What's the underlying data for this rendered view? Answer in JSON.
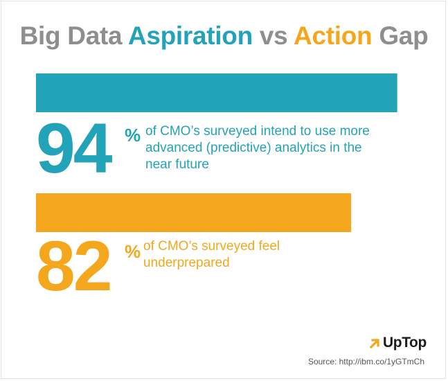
{
  "title": {
    "part1": "Big Data ",
    "part2": "Aspiration",
    "part3": " vs ",
    "part4": "Action",
    "part5": " Gap"
  },
  "colors": {
    "teal": "#22a3b8",
    "orange": "#f4a71d",
    "gray": "#8e8e8e"
  },
  "chart_data": {
    "type": "bar",
    "title": "Big Data Aspiration vs Action Gap",
    "xlabel": "",
    "ylabel": "",
    "xlim": [
      0,
      100
    ],
    "grid": false,
    "series": [
      {
        "value": 94,
        "value_label": "94",
        "unit": "%",
        "description": "of CMO’s surveyed intend to use more advanced (predictive) analytics in the near future",
        "color": "#22a3b8"
      },
      {
        "value": 82,
        "value_label": "82",
        "unit": "%",
        "description": "of CMO’s surveyed feel underprepared",
        "color": "#f4a71d"
      }
    ]
  },
  "logo": {
    "text": "UpTop"
  },
  "source": "Source: http://ibm.co/1yGTmCh"
}
